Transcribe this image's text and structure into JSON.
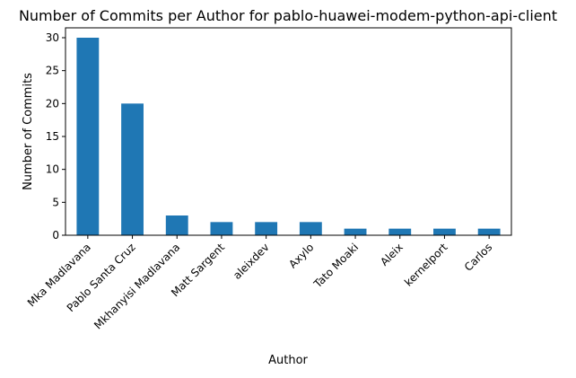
{
  "chart_data": {
    "type": "bar",
    "title": "Number of Commits per Author for pablo-huawei-modem-python-api-client",
    "xlabel": "Author",
    "ylabel": "Number of Commits",
    "categories": [
      "Mka Madlavana",
      "Pablo Santa Cruz",
      "Mkhanyisi Madlavana",
      "Matt Sargent",
      "aleixdev",
      "Axylo",
      "Tato Moaki",
      "Aleix",
      "kernelport",
      "Carlos"
    ],
    "values": [
      30,
      20,
      3,
      2,
      2,
      2,
      1,
      1,
      1,
      1
    ],
    "ylim": [
      0,
      31.5
    ],
    "yticks": [
      0,
      5,
      10,
      15,
      20,
      25,
      30
    ],
    "grid": false,
    "legend": "none",
    "colors": {
      "bar": "#1f77b4",
      "axis": "#000000",
      "background": "#ffffff"
    }
  }
}
